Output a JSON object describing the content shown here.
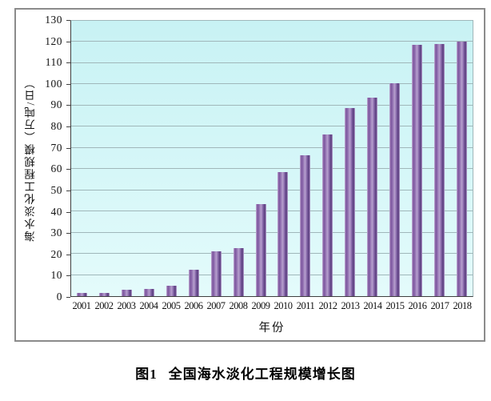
{
  "caption": {
    "prefix": "图1",
    "title": "全国海水淡化工程规模增长图"
  },
  "chart_data": {
    "type": "bar",
    "categories": [
      "2001",
      "2002",
      "2003",
      "2004",
      "2005",
      "2006",
      "2007",
      "2008",
      "2009",
      "2010",
      "2011",
      "2012",
      "2013",
      "2014",
      "2015",
      "2016",
      "2017",
      "2018"
    ],
    "values": [
      1.6,
      1.6,
      3.0,
      3.5,
      5.0,
      12.4,
      21.2,
      22.8,
      43.4,
      58.6,
      66.4,
      76.4,
      88.8,
      93.7,
      100.7,
      118.5,
      119.0,
      120.2
    ],
    "title": "图1 全国海水淡化工程规模增长图",
    "xlabel": "年份",
    "ylabel": "海水淡化工程规模（万吨/日）",
    "ylim": [
      0,
      130
    ],
    "ytick_step": 10,
    "grid": "horizontal-only",
    "legend": "none",
    "colors": {
      "bar": "#8a65a9",
      "plot_background": "#d6f7f8",
      "gridline": "#a0b7ba",
      "axis_line": "#3f3f3f",
      "frame_border": "#8b8b8b"
    }
  }
}
